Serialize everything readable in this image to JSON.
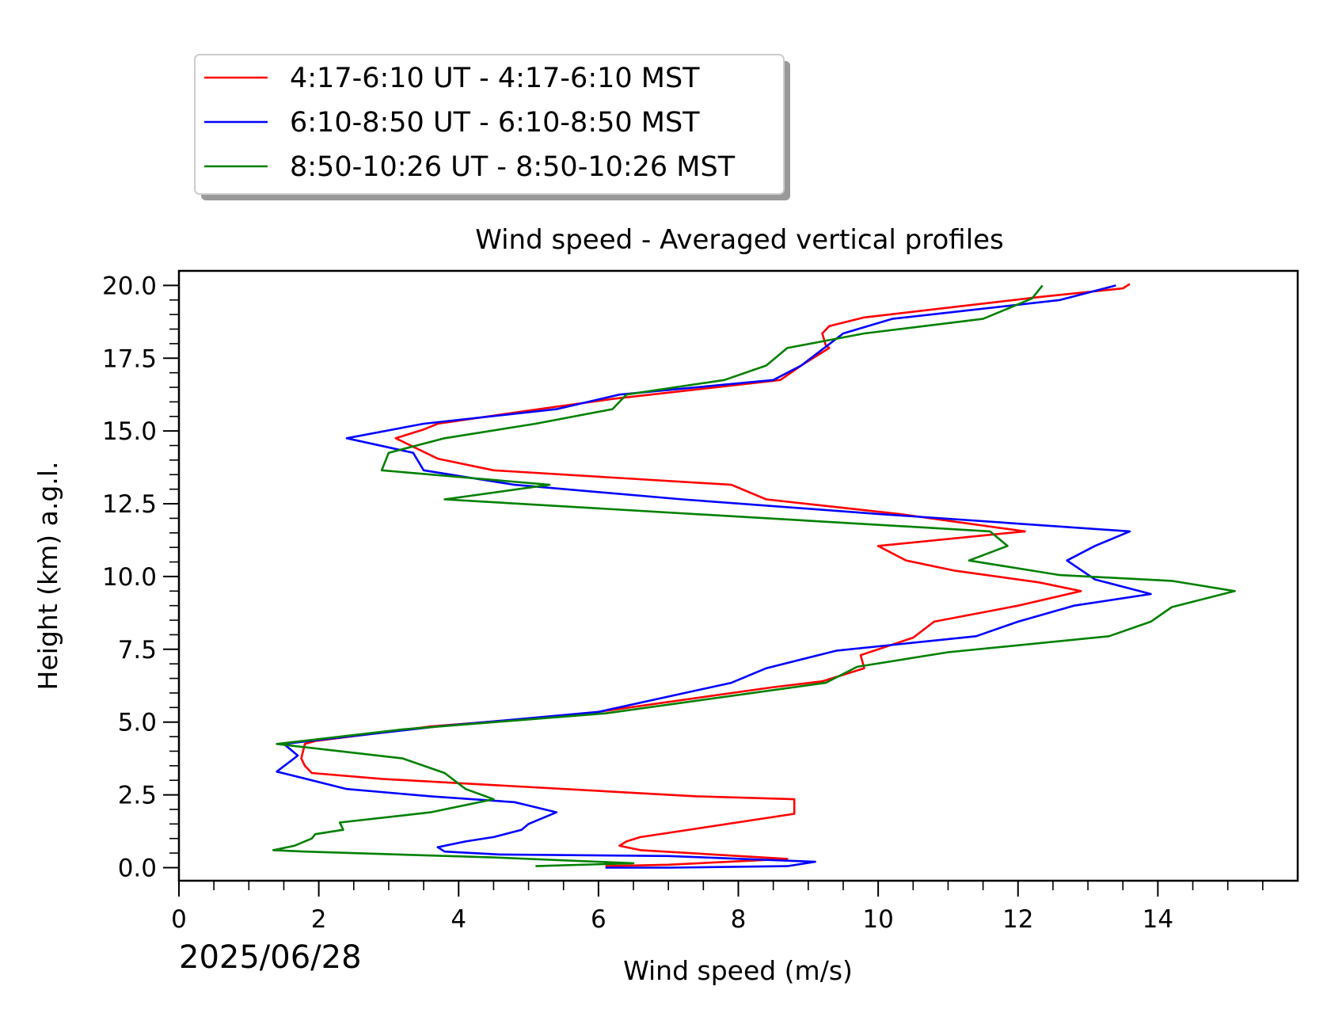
{
  "chart_data": {
    "type": "line",
    "title": "Wind speed - Averaged vertical profiles",
    "xlabel": "Wind speed (m/s)",
    "ylabel": "Height (km) a.g.l.",
    "date_label": "2025/06/28",
    "xlim": [
      0,
      16.0
    ],
    "ylim": [
      -0.45,
      20.5
    ],
    "x_ticks": [
      0,
      2,
      4,
      6,
      8,
      10,
      12,
      14
    ],
    "x_tick_labels": [
      "0",
      "2",
      "4",
      "6",
      "8",
      "10",
      "12",
      "14"
    ],
    "y_ticks": [
      0,
      2.5,
      5,
      7.5,
      10,
      12.5,
      15,
      17.5,
      20
    ],
    "y_tick_labels": [
      "0.0",
      "2.5",
      "5.0",
      "7.5",
      "10.0",
      "12.5",
      "15.0",
      "17.5",
      "20.0"
    ],
    "grid": false,
    "legend_position": "above-left, outside plot",
    "series": [
      {
        "name": "4:17-6:10 UT - 4:17-6:10 MST",
        "color": "#ff0000",
        "points": [
          [
            6.1,
            0.05
          ],
          [
            7.0,
            0.1
          ],
          [
            8.7,
            0.3
          ],
          [
            6.6,
            0.6
          ],
          [
            6.3,
            0.75
          ],
          [
            6.4,
            0.9
          ],
          [
            6.6,
            1.05
          ],
          [
            8.8,
            1.85
          ],
          [
            8.8,
            2.35
          ],
          [
            7.4,
            2.45
          ],
          [
            2.9,
            3.05
          ],
          [
            1.9,
            3.25
          ],
          [
            1.8,
            3.5
          ],
          [
            1.75,
            3.75
          ],
          [
            1.8,
            4.25
          ],
          [
            1.95,
            4.35
          ],
          [
            3.6,
            4.85
          ],
          [
            5.7,
            5.25
          ],
          [
            8.5,
            6.2
          ],
          [
            9.2,
            6.4
          ],
          [
            9.8,
            6.85
          ],
          [
            9.75,
            7.3
          ],
          [
            10.5,
            7.9
          ],
          [
            10.8,
            8.45
          ],
          [
            12.0,
            9.0
          ],
          [
            12.9,
            9.5
          ],
          [
            12.3,
            9.8
          ],
          [
            11.1,
            10.2
          ],
          [
            10.4,
            10.55
          ],
          [
            10.0,
            11.05
          ],
          [
            12.1,
            11.55
          ],
          [
            10.3,
            12.15
          ],
          [
            8.4,
            12.65
          ],
          [
            7.9,
            13.15
          ],
          [
            4.5,
            13.65
          ],
          [
            3.7,
            14.05
          ],
          [
            3.1,
            14.75
          ],
          [
            3.5,
            15.05
          ],
          [
            3.7,
            15.25
          ],
          [
            5.0,
            15.7
          ],
          [
            6.2,
            16.1
          ],
          [
            8.6,
            16.75
          ],
          [
            8.9,
            17.25
          ],
          [
            9.3,
            17.85
          ],
          [
            9.25,
            17.95
          ],
          [
            9.2,
            18.35
          ],
          [
            9.3,
            18.6
          ],
          [
            9.8,
            18.9
          ],
          [
            12.3,
            19.6
          ],
          [
            13.5,
            19.9
          ],
          [
            13.6,
            20.05
          ]
        ]
      },
      {
        "name": "6:10-8:50 UT - 6:10-8:50 MST",
        "color": "#0000ff",
        "points": [
          [
            6.1,
            0.0
          ],
          [
            7.0,
            0.0
          ],
          [
            8.7,
            0.05
          ],
          [
            9.1,
            0.2
          ],
          [
            7.0,
            0.4
          ],
          [
            4.6,
            0.45
          ],
          [
            3.8,
            0.55
          ],
          [
            3.7,
            0.7
          ],
          [
            4.1,
            0.9
          ],
          [
            4.5,
            1.05
          ],
          [
            4.9,
            1.3
          ],
          [
            5.0,
            1.5
          ],
          [
            5.4,
            1.9
          ],
          [
            4.8,
            2.25
          ],
          [
            3.6,
            2.45
          ],
          [
            2.4,
            2.7
          ],
          [
            1.4,
            3.3
          ],
          [
            1.7,
            3.85
          ],
          [
            1.5,
            4.25
          ],
          [
            3.7,
            4.85
          ],
          [
            6.0,
            5.35
          ],
          [
            7.9,
            6.35
          ],
          [
            8.4,
            6.85
          ],
          [
            9.4,
            7.45
          ],
          [
            11.4,
            7.95
          ],
          [
            12.0,
            8.45
          ],
          [
            12.8,
            9.0
          ],
          [
            13.9,
            9.4
          ],
          [
            13.1,
            9.9
          ],
          [
            12.7,
            10.55
          ],
          [
            13.1,
            11.05
          ],
          [
            13.6,
            11.55
          ],
          [
            10.0,
            12.15
          ],
          [
            7.2,
            12.65
          ],
          [
            4.8,
            13.15
          ],
          [
            3.5,
            13.65
          ],
          [
            3.35,
            14.25
          ],
          [
            2.4,
            14.75
          ],
          [
            3.5,
            15.25
          ],
          [
            5.4,
            15.75
          ],
          [
            6.3,
            16.25
          ],
          [
            8.5,
            16.75
          ],
          [
            8.9,
            17.25
          ],
          [
            9.5,
            18.35
          ],
          [
            10.2,
            18.85
          ],
          [
            12.6,
            19.5
          ],
          [
            13.4,
            20.0
          ]
        ]
      },
      {
        "name": "8:50-10:26 UT - 8:50-10:26 MST",
        "color": "#008000",
        "points": [
          [
            5.1,
            0.05
          ],
          [
            6.5,
            0.15
          ],
          [
            4.5,
            0.35
          ],
          [
            1.8,
            0.55
          ],
          [
            1.35,
            0.6
          ],
          [
            1.65,
            0.75
          ],
          [
            1.9,
            1.0
          ],
          [
            1.95,
            1.15
          ],
          [
            2.35,
            1.3
          ],
          [
            2.3,
            1.55
          ],
          [
            3.6,
            1.9
          ],
          [
            4.5,
            2.35
          ],
          [
            4.1,
            2.7
          ],
          [
            3.8,
            3.25
          ],
          [
            3.2,
            3.75
          ],
          [
            1.4,
            4.25
          ],
          [
            3.2,
            4.75
          ],
          [
            6.1,
            5.3
          ],
          [
            9.25,
            6.35
          ],
          [
            9.7,
            6.9
          ],
          [
            11.0,
            7.4
          ],
          [
            13.3,
            7.95
          ],
          [
            13.9,
            8.45
          ],
          [
            14.2,
            8.95
          ],
          [
            15.1,
            9.5
          ],
          [
            14.2,
            9.85
          ],
          [
            12.6,
            10.05
          ],
          [
            11.3,
            10.55
          ],
          [
            11.85,
            11.05
          ],
          [
            11.6,
            11.55
          ],
          [
            3.8,
            12.65
          ],
          [
            5.3,
            13.15
          ],
          [
            2.9,
            13.65
          ],
          [
            3.0,
            14.25
          ],
          [
            3.8,
            14.75
          ],
          [
            5.1,
            15.25
          ],
          [
            6.2,
            15.75
          ],
          [
            6.4,
            16.25
          ],
          [
            7.8,
            16.75
          ],
          [
            8.4,
            17.25
          ],
          [
            8.7,
            17.85
          ],
          [
            9.8,
            18.35
          ],
          [
            11.5,
            18.85
          ],
          [
            12.2,
            19.55
          ],
          [
            12.3,
            19.85
          ],
          [
            12.35,
            20.0
          ]
        ]
      }
    ]
  }
}
